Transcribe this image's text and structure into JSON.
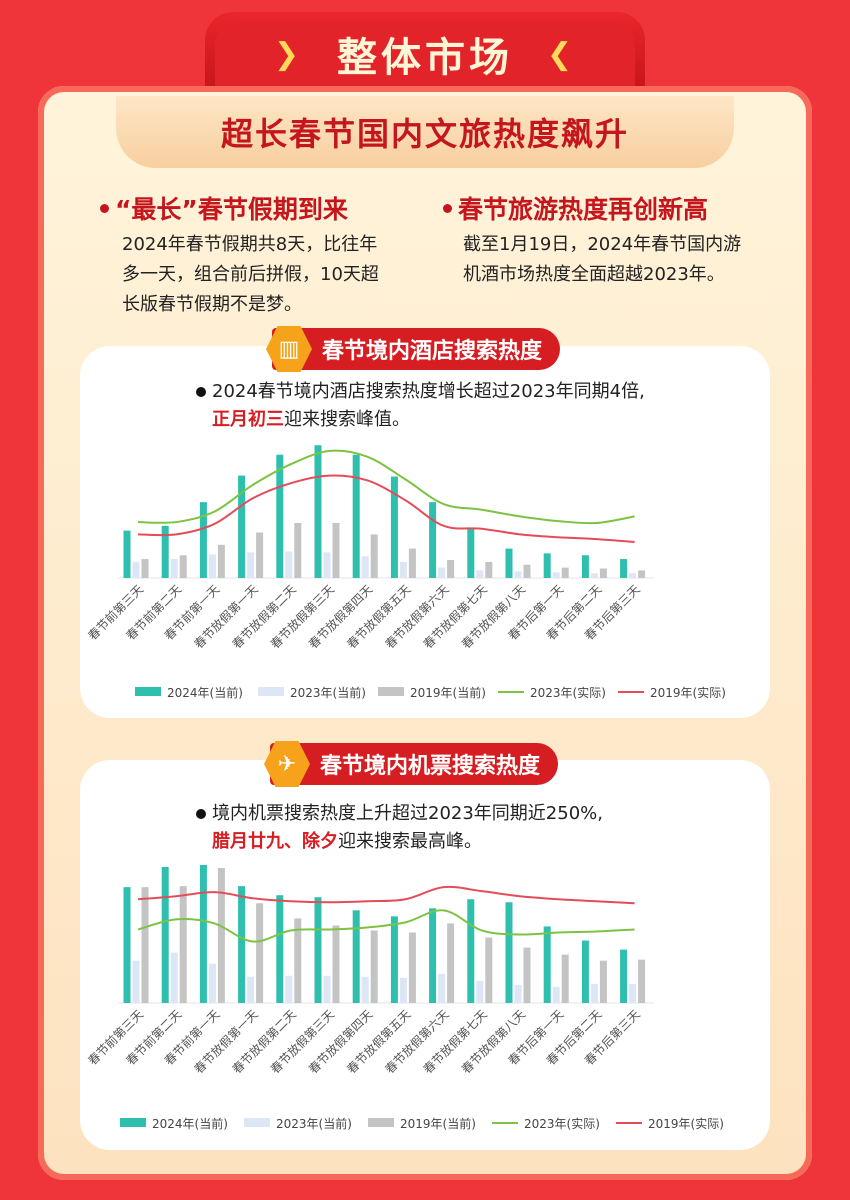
{
  "header": {
    "title": "整体市场",
    "chevron_left": "❯",
    "chevron_right": "❮"
  },
  "subtitle": "超长春节国内文旅热度飙升",
  "points": [
    {
      "title": "“最长”春节假期到来",
      "lines": [
        "2024年春节假期共8天，比往年",
        "多一天，组合前后拼假，10天超",
        "长版春节假期不是梦。"
      ]
    },
    {
      "title": "春节旅游热度再创新高",
      "lines": [
        "截至1月19日，2024年春节国内游",
        "机酒市场热度全面超越2023年。"
      ]
    }
  ],
  "hotel": {
    "tag": "春节境内酒店搜索热度",
    "note_line1": "2024春节境内酒店搜索热度增长超过2023年同期4倍,",
    "note_hl": "正月初三",
    "note_rest": "迎来搜索峰值。"
  },
  "flight": {
    "tag": "春节境内机票搜索热度",
    "note_line1": "境内机票搜索热度上升超过2023年同期近250%,",
    "note_hl": "腊月廿九、除夕",
    "note_rest": "迎来搜索最高峰。"
  },
  "colors": {
    "s2024": "#2fbfae",
    "s2023": "#dde6f5",
    "s2019": "#c4c4c4",
    "l2023": "#7dc242",
    "l2019": "#e34d5a"
  },
  "chart_data": [
    {
      "type": "bar",
      "categories": [
        "春节前第三天",
        "春节前第二天",
        "春节前第一天",
        "春节放假第一天",
        "春节放假第二天",
        "春节放假第三天",
        "春节放假第四天",
        "春节放假第五天",
        "春节放假第六天",
        "春节放假第七天",
        "春节放假第八天",
        "春节后第一天",
        "春节后第二天",
        "春节后第三天"
      ],
      "ylim": [
        0,
        135
      ],
      "series": [
        {
          "name": "2024年(当前)",
          "kind": "bar",
          "values": [
            50,
            55,
            80,
            108,
            130,
            140,
            130,
            107,
            80,
            52,
            31,
            26,
            24,
            20
          ]
        },
        {
          "name": "2023年(当前)",
          "kind": "bar",
          "values": [
            17,
            20,
            25,
            27,
            28,
            27,
            23,
            17,
            11,
            8,
            7,
            6,
            5,
            5
          ]
        },
        {
          "name": "2019年(当前)",
          "kind": "bar",
          "values": [
            20,
            24,
            35,
            48,
            58,
            58,
            46,
            31,
            19,
            17,
            14,
            11,
            10,
            8
          ]
        },
        {
          "name": "2023年(实际)",
          "kind": "line",
          "values": [
            59,
            59,
            70,
            98,
            120,
            134,
            128,
            104,
            78,
            72,
            65,
            60,
            58,
            65
          ]
        },
        {
          "name": "2019年(实际)",
          "kind": "line",
          "values": [
            46,
            46,
            57,
            84,
            100,
            108,
            103,
            82,
            55,
            52,
            46,
            43,
            41,
            38
          ]
        }
      ]
    },
    {
      "type": "bar",
      "categories": [
        "春节前第三天",
        "春节前第二天",
        "春节前第一天",
        "春节放假第一天",
        "春节放假第二天",
        "春节放假第三天",
        "春节放假第四天",
        "春节放假第五天",
        "春节放假第六天",
        "春节放假第七天",
        "春节放假第八天",
        "春节后第一天",
        "春节后第二天",
        "春节后第三天"
      ],
      "ylim": [
        0,
        135
      ],
      "series": [
        {
          "name": "2024年(当前)",
          "kind": "bar",
          "values": [
            115,
            135,
            137,
            116,
            107,
            105,
            92,
            86,
            94,
            103,
            100,
            76,
            62,
            53
          ]
        },
        {
          "name": "2023年(当前)",
          "kind": "bar",
          "values": [
            42,
            50,
            39,
            26,
            27,
            27,
            26,
            25,
            29,
            22,
            18,
            16,
            19,
            19
          ]
        },
        {
          "name": "2019年(当前)",
          "kind": "bar",
          "values": [
            115,
            116,
            134,
            99,
            84,
            77,
            72,
            70,
            79,
            65,
            55,
            48,
            42,
            43
          ]
        },
        {
          "name": "2023年(实际)",
          "kind": "line",
          "values": [
            73,
            83,
            79,
            61,
            72,
            73,
            75,
            80,
            92,
            72,
            68,
            70,
            71,
            73
          ]
        },
        {
          "name": "2019年(实际)",
          "kind": "line",
          "values": [
            103,
            106,
            110,
            104,
            101,
            100,
            101,
            103,
            115,
            111,
            106,
            103,
            101,
            99
          ]
        }
      ]
    }
  ]
}
